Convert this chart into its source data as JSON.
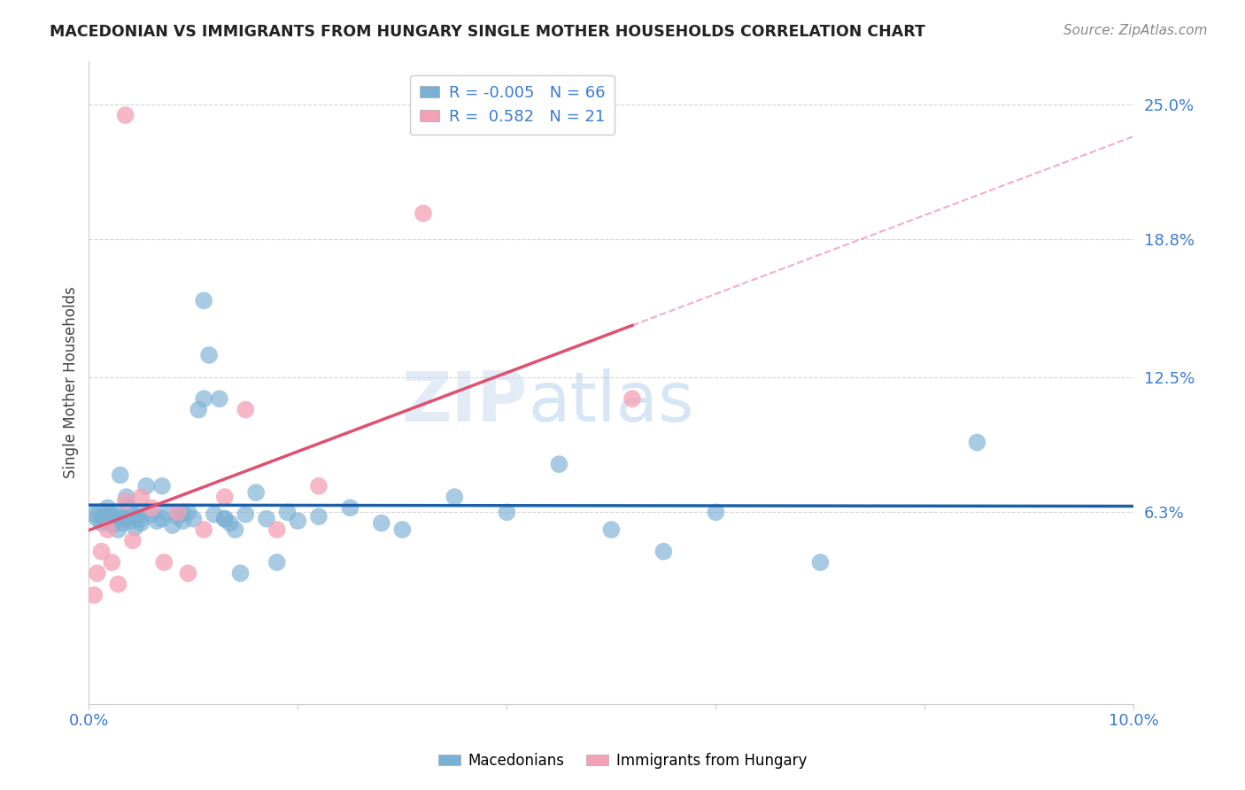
{
  "title": "MACEDONIAN VS IMMIGRANTS FROM HUNGARY SINGLE MOTHER HOUSEHOLDS CORRELATION CHART",
  "source": "Source: ZipAtlas.com",
  "ylabel": "Single Mother Households",
  "xlim": [
    0.0,
    10.0
  ],
  "ylim": [
    -2.5,
    27.0
  ],
  "yticks": [
    6.3,
    12.5,
    18.8,
    25.0
  ],
  "ytick_labels": [
    "6.3%",
    "12.5%",
    "18.8%",
    "25.0%"
  ],
  "xtick_positions": [
    0.0,
    2.0,
    4.0,
    6.0,
    8.0,
    10.0
  ],
  "xtick_labels": [
    "0.0%",
    "",
    "",
    "",
    "",
    "10.0%"
  ],
  "grid_color": "#cccccc",
  "background_color": "#ffffff",
  "blue_color": "#7ab0d4",
  "pink_color": "#f4a0b5",
  "blue_line_color": "#1a5fa8",
  "pink_line_color": "#e05070",
  "R_blue": -0.005,
  "N_blue": 66,
  "R_pink": 0.582,
  "N_pink": 21,
  "watermark_zip": "ZIP",
  "watermark_atlas": "atlas",
  "macedonian_x": [
    0.05,
    0.08,
    0.1,
    0.12,
    0.14,
    0.16,
    0.18,
    0.2,
    0.22,
    0.24,
    0.26,
    0.28,
    0.3,
    0.32,
    0.34,
    0.36,
    0.38,
    0.4,
    0.42,
    0.44,
    0.46,
    0.48,
    0.5,
    0.55,
    0.6,
    0.65,
    0.7,
    0.75,
    0.8,
    0.85,
    0.9,
    0.95,
    1.0,
    1.05,
    1.1,
    1.15,
    1.2,
    1.25,
    1.3,
    1.35,
    1.4,
    1.45,
    1.5,
    1.6,
    1.7,
    1.8,
    1.9,
    2.0,
    2.2,
    2.5,
    2.8,
    3.0,
    3.5,
    4.0,
    4.5,
    5.0,
    5.5,
    6.0,
    7.0,
    8.5,
    0.3,
    0.5,
    0.7,
    0.9,
    1.1,
    1.3
  ],
  "macedonian_y": [
    6.2,
    6.0,
    6.3,
    5.8,
    6.1,
    5.9,
    6.5,
    6.2,
    5.7,
    6.0,
    6.3,
    5.5,
    6.1,
    5.8,
    6.0,
    7.0,
    6.5,
    5.9,
    6.2,
    5.6,
    6.0,
    6.3,
    5.8,
    7.5,
    6.2,
    5.9,
    6.0,
    6.3,
    5.7,
    6.1,
    5.9,
    6.3,
    6.0,
    11.0,
    16.0,
    13.5,
    6.2,
    11.5,
    6.0,
    5.8,
    5.5,
    3.5,
    6.2,
    7.2,
    6.0,
    4.0,
    6.3,
    5.9,
    6.1,
    6.5,
    5.8,
    5.5,
    7.0,
    6.3,
    8.5,
    5.5,
    4.5,
    6.3,
    4.0,
    9.5,
    8.0,
    6.0,
    7.5,
    6.3,
    11.5,
    6.0
  ],
  "hungary_x": [
    0.05,
    0.08,
    0.12,
    0.18,
    0.22,
    0.28,
    0.35,
    0.42,
    0.5,
    0.6,
    0.72,
    0.85,
    0.95,
    1.1,
    1.3,
    1.5,
    1.8,
    2.2,
    3.2,
    5.2,
    0.35
  ],
  "hungary_y": [
    2.5,
    3.5,
    4.5,
    5.5,
    4.0,
    3.0,
    6.8,
    5.0,
    7.0,
    6.5,
    4.0,
    6.3,
    3.5,
    5.5,
    7.0,
    11.0,
    5.5,
    7.5,
    20.0,
    11.5,
    24.5
  ]
}
